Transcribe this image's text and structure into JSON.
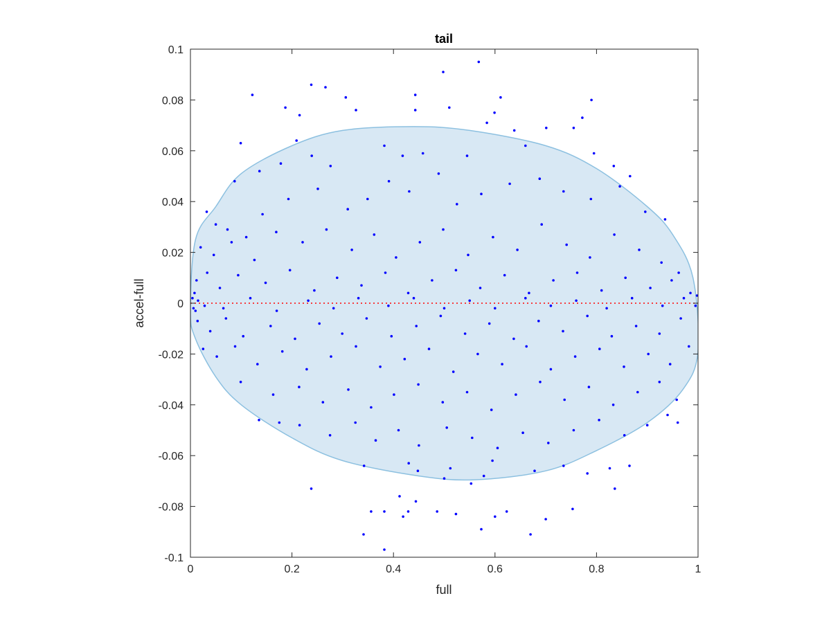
{
  "chart_data": {
    "type": "scatter",
    "title": "tail",
    "xlabel": "full",
    "ylabel": "accel-full",
    "xlim": [
      0,
      1
    ],
    "ylim": [
      -0.1,
      0.1
    ],
    "xticks": [
      0,
      0.2,
      0.4,
      0.6,
      0.8,
      1
    ],
    "xtick_labels": [
      "0",
      "0.2",
      "0.4",
      "0.6",
      "0.8",
      "1"
    ],
    "yticks": [
      -0.1,
      -0.08,
      -0.06,
      -0.04,
      -0.02,
      0,
      0.02,
      0.04,
      0.06,
      0.08,
      0.1
    ],
    "ytick_labels": [
      "-0.1",
      "-0.08",
      "-0.06",
      "-0.04",
      "-0.02",
      "0",
      "0.02",
      "0.04",
      "0.06",
      "0.08",
      "0.1"
    ],
    "grid": false,
    "colors": {
      "points": "#0000ff",
      "ellipse_fill": "#d8e8f4",
      "ellipse_stroke": "#8cc0e0",
      "reference_line": "#ff0000"
    },
    "ellipse": {
      "points": [
        [
          0,
          -0.003
        ],
        [
          0.01,
          0.025
        ],
        [
          0.05,
          0.038
        ],
        [
          0.1,
          0.051
        ],
        [
          0.2,
          0.062
        ],
        [
          0.3,
          0.068
        ],
        [
          0.44,
          0.0695
        ],
        [
          0.55,
          0.068
        ],
        [
          0.7,
          0.062
        ],
        [
          0.8,
          0.053
        ],
        [
          0.9,
          0.038
        ],
        [
          0.95,
          0.027
        ],
        [
          0.99,
          0.01
        ],
        [
          1.0,
          -0.019
        ],
        [
          0.97,
          -0.034
        ],
        [
          0.9,
          -0.047
        ],
        [
          0.8,
          -0.058
        ],
        [
          0.7,
          -0.066
        ],
        [
          0.56,
          -0.0695
        ],
        [
          0.45,
          -0.068
        ],
        [
          0.3,
          -0.062
        ],
        [
          0.2,
          -0.053
        ],
        [
          0.1,
          -0.04
        ],
        [
          0.05,
          -0.029
        ],
        [
          0.01,
          -0.014
        ],
        [
          0,
          -0.003
        ]
      ]
    },
    "reference_line": {
      "y": 0,
      "style": "dotted"
    },
    "series": [
      {
        "marker": "dot",
        "points": [
          [
            0.568,
            0.095
          ],
          [
            0.498,
            0.091
          ],
          [
            0.238,
            0.086
          ],
          [
            0.266,
            0.085
          ],
          [
            0.122,
            0.082
          ],
          [
            0.443,
            0.082
          ],
          [
            0.611,
            0.081
          ],
          [
            0.306,
            0.081
          ],
          [
            0.79,
            0.08
          ],
          [
            0.187,
            0.077
          ],
          [
            0.326,
            0.076
          ],
          [
            0.443,
            0.076
          ],
          [
            0.51,
            0.077
          ],
          [
            0.772,
            0.073
          ],
          [
            0.215,
            0.074
          ],
          [
            0.599,
            0.075
          ],
          [
            0.701,
            0.069
          ],
          [
            0.584,
            0.071
          ],
          [
            0.755,
            0.069
          ],
          [
            0.099,
            0.063
          ],
          [
            0.209,
            0.064
          ],
          [
            0.638,
            0.068
          ],
          [
            0.382,
            0.062
          ],
          [
            0.418,
            0.058
          ],
          [
            0.458,
            0.059
          ],
          [
            0.545,
            0.058
          ],
          [
            0.66,
            0.062
          ],
          [
            0.795,
            0.059
          ],
          [
            0.834,
            0.054
          ],
          [
            0.866,
            0.05
          ],
          [
            0.276,
            0.054
          ],
          [
            0.239,
            0.058
          ],
          [
            0.178,
            0.055
          ],
          [
            0.136,
            0.052
          ],
          [
            0.087,
            0.048
          ],
          [
            0.032,
            0.036
          ],
          [
            0.05,
            0.031
          ],
          [
            0.073,
            0.029
          ],
          [
            0.11,
            0.026
          ],
          [
            0.142,
            0.035
          ],
          [
            0.193,
            0.041
          ],
          [
            0.251,
            0.045
          ],
          [
            0.31,
            0.037
          ],
          [
            0.349,
            0.041
          ],
          [
            0.391,
            0.048
          ],
          [
            0.431,
            0.044
          ],
          [
            0.489,
            0.051
          ],
          [
            0.525,
            0.039
          ],
          [
            0.573,
            0.043
          ],
          [
            0.629,
            0.047
          ],
          [
            0.688,
            0.049
          ],
          [
            0.735,
            0.044
          ],
          [
            0.789,
            0.041
          ],
          [
            0.846,
            0.046
          ],
          [
            0.896,
            0.036
          ],
          [
            0.935,
            0.033
          ],
          [
            0.02,
            0.022
          ],
          [
            0.046,
            0.019
          ],
          [
            0.081,
            0.024
          ],
          [
            0.126,
            0.017
          ],
          [
            0.169,
            0.028
          ],
          [
            0.221,
            0.024
          ],
          [
            0.268,
            0.029
          ],
          [
            0.318,
            0.021
          ],
          [
            0.362,
            0.027
          ],
          [
            0.405,
            0.018
          ],
          [
            0.452,
            0.024
          ],
          [
            0.498,
            0.029
          ],
          [
            0.547,
            0.019
          ],
          [
            0.596,
            0.026
          ],
          [
            0.644,
            0.021
          ],
          [
            0.692,
            0.031
          ],
          [
            0.741,
            0.023
          ],
          [
            0.787,
            0.018
          ],
          [
            0.835,
            0.027
          ],
          [
            0.884,
            0.021
          ],
          [
            0.928,
            0.016
          ],
          [
            0.962,
            0.012
          ],
          [
            0.012,
            0.009
          ],
          [
            0.033,
            0.012
          ],
          [
            0.058,
            0.006
          ],
          [
            0.094,
            0.011
          ],
          [
            0.148,
            0.008
          ],
          [
            0.196,
            0.013
          ],
          [
            0.244,
            0.005
          ],
          [
            0.289,
            0.01
          ],
          [
            0.337,
            0.007
          ],
          [
            0.384,
            0.012
          ],
          [
            0.429,
            0.004
          ],
          [
            0.476,
            0.009
          ],
          [
            0.523,
            0.013
          ],
          [
            0.571,
            0.006
          ],
          [
            0.619,
            0.011
          ],
          [
            0.667,
            0.004
          ],
          [
            0.715,
            0.009
          ],
          [
            0.762,
            0.012
          ],
          [
            0.81,
            0.005
          ],
          [
            0.857,
            0.01
          ],
          [
            0.906,
            0.006
          ],
          [
            0.948,
            0.009
          ],
          [
            0.985,
            0.004
          ],
          [
            0.004,
            0.002
          ],
          [
            0.006,
            -0.002
          ],
          [
            0.008,
            0.004
          ],
          [
            0.01,
            -0.003
          ],
          [
            0.015,
            0.001
          ],
          [
            0.028,
            -0.001
          ],
          [
            0.065,
            -0.002
          ],
          [
            0.118,
            0.002
          ],
          [
            0.17,
            -0.003
          ],
          [
            0.232,
            0.001
          ],
          [
            0.282,
            -0.002
          ],
          [
            0.331,
            0.002
          ],
          [
            0.39,
            -0.001
          ],
          [
            0.44,
            0.002
          ],
          [
            0.5,
            -0.002
          ],
          [
            0.55,
            0.001
          ],
          [
            0.6,
            -0.002
          ],
          [
            0.66,
            0.002
          ],
          [
            0.71,
            -0.001
          ],
          [
            0.76,
            0.001
          ],
          [
            0.82,
            -0.002
          ],
          [
            0.87,
            0.002
          ],
          [
            0.93,
            -0.001
          ],
          [
            0.972,
            0.002
          ],
          [
            0.995,
            -0.001
          ],
          [
            0.998,
            0.003
          ],
          [
            0.014,
            -0.007
          ],
          [
            0.039,
            -0.011
          ],
          [
            0.07,
            -0.006
          ],
          [
            0.104,
            -0.013
          ],
          [
            0.158,
            -0.009
          ],
          [
            0.206,
            -0.014
          ],
          [
            0.254,
            -0.008
          ],
          [
            0.299,
            -0.012
          ],
          [
            0.347,
            -0.006
          ],
          [
            0.396,
            -0.013
          ],
          [
            0.445,
            -0.009
          ],
          [
            0.493,
            -0.005
          ],
          [
            0.541,
            -0.012
          ],
          [
            0.589,
            -0.008
          ],
          [
            0.637,
            -0.014
          ],
          [
            0.686,
            -0.007
          ],
          [
            0.734,
            -0.011
          ],
          [
            0.782,
            -0.005
          ],
          [
            0.83,
            -0.013
          ],
          [
            0.878,
            -0.009
          ],
          [
            0.924,
            -0.012
          ],
          [
            0.966,
            -0.006
          ],
          [
            0.025,
            -0.018
          ],
          [
            0.052,
            -0.021
          ],
          [
            0.088,
            -0.017
          ],
          [
            0.132,
            -0.024
          ],
          [
            0.181,
            -0.019
          ],
          [
            0.229,
            -0.026
          ],
          [
            0.277,
            -0.021
          ],
          [
            0.326,
            -0.017
          ],
          [
            0.374,
            -0.025
          ],
          [
            0.422,
            -0.022
          ],
          [
            0.47,
            -0.018
          ],
          [
            0.518,
            -0.027
          ],
          [
            0.566,
            -0.02
          ],
          [
            0.614,
            -0.024
          ],
          [
            0.662,
            -0.017
          ],
          [
            0.71,
            -0.026
          ],
          [
            0.758,
            -0.021
          ],
          [
            0.806,
            -0.018
          ],
          [
            0.854,
            -0.025
          ],
          [
            0.902,
            -0.02
          ],
          [
            0.945,
            -0.024
          ],
          [
            0.982,
            -0.017
          ],
          [
            0.099,
            -0.031
          ],
          [
            0.163,
            -0.036
          ],
          [
            0.214,
            -0.033
          ],
          [
            0.261,
            -0.039
          ],
          [
            0.311,
            -0.034
          ],
          [
            0.356,
            -0.041
          ],
          [
            0.401,
            -0.036
          ],
          [
            0.449,
            -0.032
          ],
          [
            0.497,
            -0.039
          ],
          [
            0.545,
            -0.035
          ],
          [
            0.593,
            -0.042
          ],
          [
            0.641,
            -0.036
          ],
          [
            0.689,
            -0.031
          ],
          [
            0.737,
            -0.038
          ],
          [
            0.785,
            -0.033
          ],
          [
            0.833,
            -0.04
          ],
          [
            0.881,
            -0.035
          ],
          [
            0.924,
            -0.031
          ],
          [
            0.958,
            -0.038
          ],
          [
            0.135,
            -0.046
          ],
          [
            0.175,
            -0.047
          ],
          [
            0.215,
            -0.048
          ],
          [
            0.275,
            -0.052
          ],
          [
            0.325,
            -0.047
          ],
          [
            0.365,
            -0.054
          ],
          [
            0.41,
            -0.05
          ],
          [
            0.45,
            -0.056
          ],
          [
            0.505,
            -0.049
          ],
          [
            0.555,
            -0.053
          ],
          [
            0.605,
            -0.057
          ],
          [
            0.655,
            -0.051
          ],
          [
            0.705,
            -0.055
          ],
          [
            0.755,
            -0.05
          ],
          [
            0.805,
            -0.046
          ],
          [
            0.855,
            -0.052
          ],
          [
            0.9,
            -0.048
          ],
          [
            0.94,
            -0.044
          ],
          [
            0.96,
            -0.047
          ],
          [
            0.342,
            -0.064
          ],
          [
            0.43,
            -0.063
          ],
          [
            0.512,
            -0.065
          ],
          [
            0.595,
            -0.062
          ],
          [
            0.678,
            -0.066
          ],
          [
            0.735,
            -0.064
          ],
          [
            0.782,
            -0.067
          ],
          [
            0.826,
            -0.065
          ],
          [
            0.865,
            -0.064
          ],
          [
            0.448,
            -0.066
          ],
          [
            0.578,
            -0.068
          ],
          [
            0.5,
            -0.069
          ],
          [
            0.553,
            -0.071
          ],
          [
            0.836,
            -0.073
          ],
          [
            0.238,
            -0.073
          ],
          [
            0.412,
            -0.076
          ],
          [
            0.356,
            -0.082
          ],
          [
            0.382,
            -0.082
          ],
          [
            0.429,
            -0.082
          ],
          [
            0.486,
            -0.082
          ],
          [
            0.523,
            -0.083
          ],
          [
            0.6,
            -0.084
          ],
          [
            0.623,
            -0.082
          ],
          [
            0.7,
            -0.085
          ],
          [
            0.753,
            -0.081
          ],
          [
            0.341,
            -0.091
          ],
          [
            0.382,
            -0.097
          ],
          [
            0.573,
            -0.089
          ],
          [
            0.67,
            -0.091
          ],
          [
            0.419,
            -0.084
          ],
          [
            0.444,
            -0.078
          ]
        ]
      }
    ]
  }
}
